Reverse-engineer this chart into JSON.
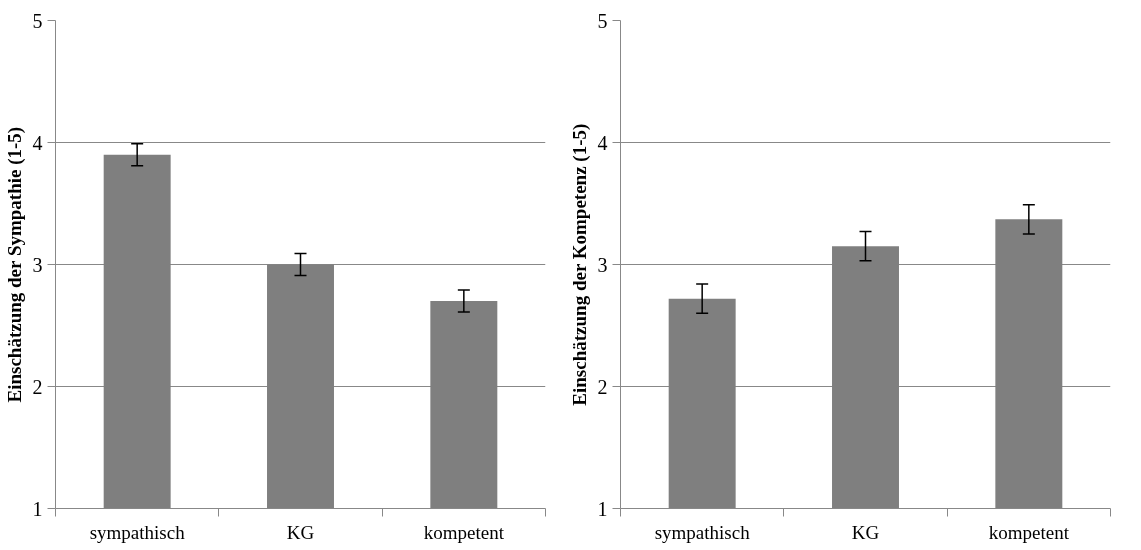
{
  "chart_data": [
    {
      "type": "bar",
      "ylabel": "Einschätzung der Sympathie (1-5)",
      "categories": [
        "sympathisch",
        "KG",
        "kompetent"
      ],
      "values": [
        3.9,
        3.0,
        2.7
      ],
      "errors": [
        0.09,
        0.09,
        0.09
      ],
      "color": "#7f7f7f",
      "ylim": [
        1,
        5
      ],
      "yticks": [
        1,
        2,
        3,
        4,
        5
      ],
      "grid": "y"
    },
    {
      "type": "bar",
      "ylabel": "Einschätzung der Kompetenz (1-5)",
      "categories": [
        "sympathisch",
        "KG",
        "kompetent"
      ],
      "values": [
        2.72,
        3.15,
        3.37
      ],
      "errors": [
        0.12,
        0.12,
        0.12
      ],
      "color": "#7f7f7f",
      "ylim": [
        1,
        5
      ],
      "yticks": [
        1,
        2,
        3,
        4,
        5
      ],
      "grid": "y"
    }
  ]
}
